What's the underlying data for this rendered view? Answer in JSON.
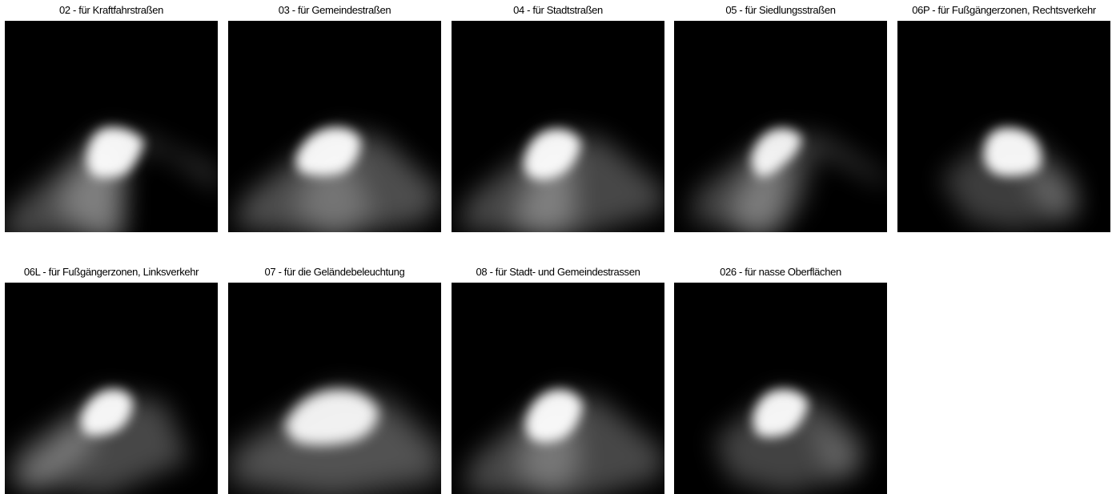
{
  "colors": {
    "background": "#ffffff",
    "label_text": "#000000",
    "image_background": "#000000",
    "light": "#ffffff"
  },
  "tiles": [
    {
      "label": "02 - für Kraftfahrstraßen",
      "icon": "light-distribution-image"
    },
    {
      "label": "03 - für Gemeindestraßen",
      "icon": "light-distribution-image"
    },
    {
      "label": "04 - für Stadtstraßen",
      "icon": "light-distribution-image"
    },
    {
      "label": "05 - für Siedlungsstraßen",
      "icon": "light-distribution-image"
    },
    {
      "label": "06P - für Fußgängerzonen, Rechtsverkehr",
      "icon": "light-distribution-image"
    },
    {
      "label": "06L - für Fußgängerzonen, Linksverkehr",
      "icon": "light-distribution-image"
    },
    {
      "label": "07 - für die Geländebeleuchtung",
      "icon": "light-distribution-image"
    },
    {
      "label": "08 - für Stadt- und Gemeindestrassen",
      "icon": "light-distribution-image"
    },
    {
      "label": "026 - für nasse Oberflächen",
      "icon": "light-distribution-image"
    }
  ]
}
